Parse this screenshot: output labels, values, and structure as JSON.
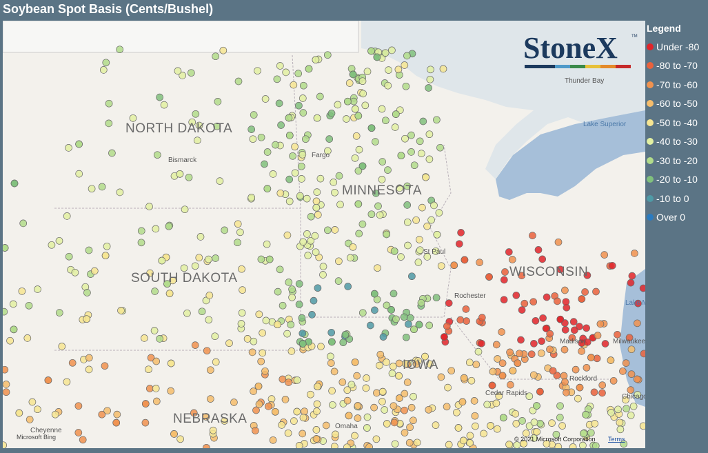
{
  "header": {
    "title": "Soybean Spot Basis (Cents/Bushel)"
  },
  "legend": {
    "title": "Legend",
    "items": [
      {
        "label": "Under -80",
        "color": "#e0242a"
      },
      {
        "label": "-80 to -70",
        "color": "#e9613c"
      },
      {
        "label": "-70 to -60",
        "color": "#f0924f"
      },
      {
        "label": "-60 to -50",
        "color": "#f5bd6c"
      },
      {
        "label": "-50 to -40",
        "color": "#f6e592"
      },
      {
        "label": "-40 to -30",
        "color": "#e2f0a2"
      },
      {
        "label": "-30 to -20",
        "color": "#b2dc8b"
      },
      {
        "label": "-20 to -10",
        "color": "#80c07d"
      },
      {
        "label": "-10 to 0",
        "color": "#4f9aa6"
      },
      {
        "label": "Over 0",
        "color": "#2b7bbf"
      }
    ]
  },
  "map": {
    "states": [
      "NORTH DAKOTA",
      "SOUTH DAKOTA",
      "NEBRASKA",
      "MINNESOTA",
      "WISCONSIN",
      "IOWA"
    ],
    "cities": [
      "Bismarck",
      "Fargo",
      "St Paul",
      "Rochester",
      "Madison",
      "Rockford",
      "Milwaukee",
      "Chicago",
      "Cedar Rapids",
      "Omaha",
      "Cheyenne",
      "Thunder Bay"
    ],
    "water": [
      "Lake Superior",
      "Lake Michigan"
    ],
    "logo": "StoneX",
    "trademark": "TM",
    "attribution": {
      "bing": "Microsoft Bing",
      "copyright": "© 2021 Microsoft Corporation",
      "terms": "Terms"
    }
  }
}
